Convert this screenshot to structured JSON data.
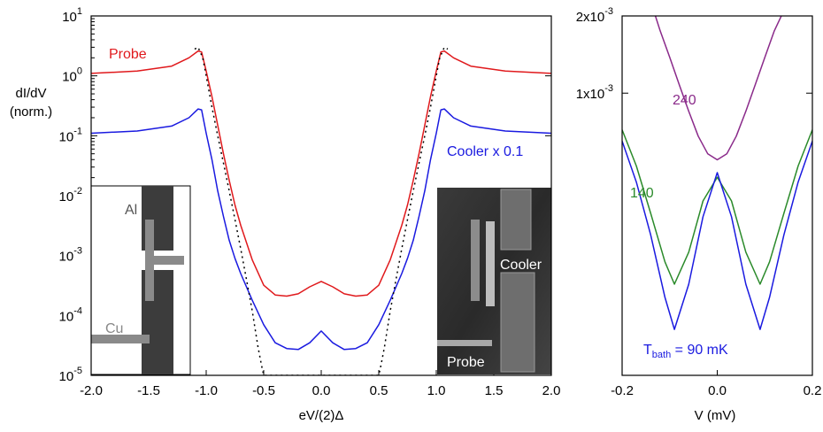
{
  "chart_data": [
    {
      "type": "line",
      "y_scale": "log",
      "xlabel": "eV/(2)Δ",
      "ylabel": [
        "dI/dV",
        "(norm.)"
      ],
      "xlim": [
        -2.0,
        2.0
      ],
      "ylim": [
        1e-05,
        10
      ],
      "x_ticks": [
        "-2.0",
        "-1.5",
        "-1.0",
        "-0.5",
        "0.0",
        "0.5",
        "1.0",
        "1.5",
        "2.0"
      ],
      "y_ticks": [
        {
          "v": 10.0,
          "b": "10",
          "e": "1"
        },
        {
          "v": 1.0,
          "b": "10",
          "e": "0"
        },
        {
          "v": 0.1,
          "b": "10",
          "e": "-1"
        },
        {
          "v": 0.01,
          "b": "10",
          "e": "-2"
        },
        {
          "v": 0.001,
          "b": "10",
          "e": "-3"
        },
        {
          "v": 0.0001,
          "b": "10",
          "e": "-4"
        },
        {
          "v": 1e-05,
          "b": "10",
          "e": "-5"
        }
      ],
      "series": [
        {
          "name": "Probe",
          "color": "#e0191c",
          "x": [
            -2.0,
            -1.6,
            -1.3,
            -1.15,
            -1.07,
            -1.04,
            -1.0,
            -0.95,
            -0.9,
            -0.85,
            -0.8,
            -0.75,
            -0.7,
            -0.6,
            -0.5,
            -0.4,
            -0.3,
            -0.2,
            -0.1,
            0.0,
            0.1,
            0.2,
            0.3,
            0.4,
            0.5,
            0.6,
            0.7,
            0.75,
            0.8,
            0.85,
            0.9,
            0.95,
            1.0,
            1.04,
            1.07,
            1.15,
            1.3,
            1.6,
            2.0
          ],
          "y": [
            1.1,
            1.2,
            1.45,
            2.0,
            2.6,
            2.5,
            1.2,
            0.45,
            0.15,
            0.05,
            0.018,
            0.007,
            0.0032,
            0.00085,
            0.00032,
            0.00022,
            0.00021,
            0.00023,
            0.0003,
            0.00037,
            0.0003,
            0.00023,
            0.00021,
            0.00022,
            0.00032,
            0.00085,
            0.0032,
            0.007,
            0.018,
            0.05,
            0.15,
            0.45,
            1.2,
            2.5,
            2.6,
            2.0,
            1.45,
            1.2,
            1.1
          ]
        },
        {
          "name": "Cooler x 0.1",
          "color": "#1a1ae0",
          "x": [
            -2.0,
            -1.6,
            -1.3,
            -1.15,
            -1.07,
            -1.04,
            -1.0,
            -0.95,
            -0.9,
            -0.85,
            -0.8,
            -0.75,
            -0.7,
            -0.6,
            -0.5,
            -0.4,
            -0.3,
            -0.2,
            -0.1,
            0.0,
            0.1,
            0.2,
            0.3,
            0.4,
            0.5,
            0.6,
            0.7,
            0.75,
            0.8,
            0.85,
            0.9,
            0.95,
            1.0,
            1.04,
            1.07,
            1.15,
            1.3,
            1.6,
            2.0
          ],
          "y": [
            0.11,
            0.12,
            0.145,
            0.2,
            0.28,
            0.27,
            0.11,
            0.04,
            0.012,
            0.0045,
            0.0018,
            0.0009,
            0.0005,
            0.00018,
            7e-05,
            3.5e-05,
            2.8e-05,
            2.7e-05,
            3.5e-05,
            5.5e-05,
            3.5e-05,
            2.7e-05,
            2.8e-05,
            3.5e-05,
            7e-05,
            0.00018,
            0.0005,
            0.0009,
            0.0018,
            0.0045,
            0.012,
            0.04,
            0.11,
            0.27,
            0.28,
            0.2,
            0.145,
            0.12,
            0.11
          ]
        },
        {
          "name": "",
          "color": "#000000",
          "dashed": true,
          "x": [
            -1.1,
            -1.07,
            -1.03,
            -1.0,
            -0.95,
            -0.9,
            -0.85,
            -0.8,
            -0.75,
            -0.7,
            -0.65,
            -0.6,
            -0.55,
            -0.52,
            -0.5,
            0.5,
            0.52,
            0.55,
            0.6,
            0.65,
            0.7,
            0.75,
            0.8,
            0.85,
            0.9,
            0.95,
            1.0,
            1.03,
            1.07,
            1.1
          ],
          "y": [
            2.8,
            3.0,
            2.0,
            1.0,
            0.3,
            0.1,
            0.035,
            0.012,
            0.004,
            0.0013,
            0.0004,
            0.00012,
            3e-05,
            1.5e-05,
            1e-05,
            1e-05,
            1.5e-05,
            3e-05,
            0.00012,
            0.0004,
            0.0013,
            0.004,
            0.012,
            0.035,
            0.1,
            0.3,
            1.0,
            2.0,
            3.0,
            2.8
          ]
        }
      ],
      "annotations": [
        "Probe",
        "Cooler x 0.1"
      ]
    },
    {
      "type": "line",
      "xlabel": "V (mV)",
      "xlim": [
        -0.2,
        0.2
      ],
      "x_ticks": [
        "-0.2",
        "0.0",
        "0.2"
      ],
      "y_ticks": [
        {
          "v": 0.002,
          "b": "2x10",
          "e": "-3"
        },
        {
          "v": 0.001,
          "b": "1x10",
          "e": "-3"
        }
      ],
      "series": [
        {
          "name": "240",
          "color": "#8a2a8a",
          "x": [
            -0.13,
            -0.12,
            -0.1,
            -0.08,
            -0.06,
            -0.04,
            -0.02,
            0.0,
            0.02,
            0.04,
            0.06,
            0.08,
            0.1,
            0.12,
            0.14
          ],
          "y": [
            0.002,
            0.00175,
            0.00138,
            0.00108,
            0.00085,
            0.00068,
            0.00058,
            0.00055,
            0.00058,
            0.00068,
            0.00085,
            0.00108,
            0.00138,
            0.00175,
            0.0021
          ]
        },
        {
          "name": "140",
          "color": "#2a8a2a",
          "x": [
            -0.2,
            -0.17,
            -0.14,
            -0.11,
            -0.09,
            -0.06,
            -0.03,
            0.0,
            0.03,
            0.06,
            0.09,
            0.11,
            0.14,
            0.17,
            0.2
          ],
          "y": [
            0.00072,
            0.00052,
            0.00034,
            0.00022,
            0.00018,
            0.00024,
            0.00038,
            0.00047,
            0.00038,
            0.00024,
            0.00018,
            0.00022,
            0.00034,
            0.00052,
            0.00072
          ]
        },
        {
          "name": "T_bath = 90 mK",
          "color": "#1a1ae0",
          "x": [
            -0.2,
            -0.17,
            -0.14,
            -0.11,
            -0.09,
            -0.06,
            -0.03,
            0.0,
            0.03,
            0.06,
            0.09,
            0.11,
            0.14,
            0.17,
            0.2
          ],
          "y": [
            0.00065,
            0.00045,
            0.00028,
            0.00016,
            0.00012,
            0.00018,
            0.00033,
            0.00049,
            0.00033,
            0.00018,
            0.00012,
            0.00016,
            0.00028,
            0.00045,
            0.00065
          ]
        }
      ],
      "annotations": [
        "240",
        "140",
        "T",
        "bath",
        " = 90 mK"
      ]
    }
  ],
  "insets": {
    "left": {
      "labels": [
        "Al",
        "Cu"
      ]
    },
    "right": {
      "labels": [
        "Cooler",
        "Probe"
      ]
    }
  }
}
